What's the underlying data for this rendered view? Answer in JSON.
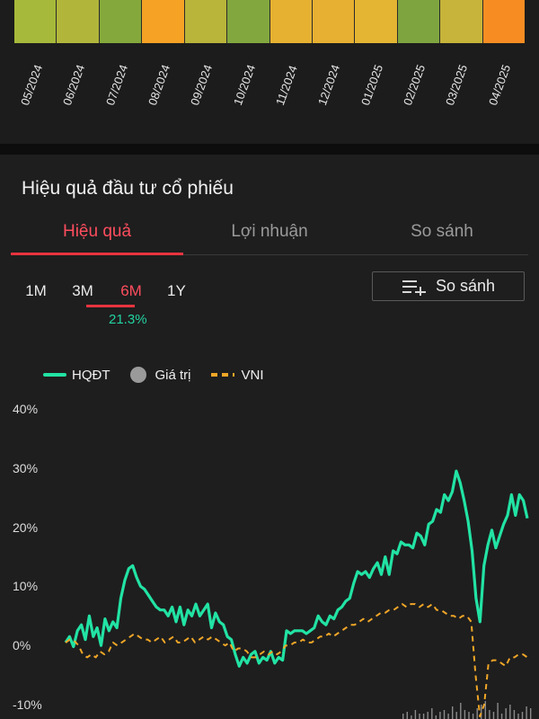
{
  "heatmap": {
    "months": [
      "05/2024",
      "06/2024",
      "07/2024",
      "08/2024",
      "09/2024",
      "10/2024",
      "11/2024",
      "12/2024",
      "01/2025",
      "02/2025",
      "03/2025",
      "04/2025"
    ],
    "colors": [
      "#a7b93a",
      "#b1b63a",
      "#84a83c",
      "#f6a224",
      "#b9b43a",
      "#82a73e",
      "#e6b131",
      "#e7b032",
      "#e4b533",
      "#7ea43f",
      "#c7b43a",
      "#f78d22"
    ]
  },
  "section": {
    "title": "Hiệu quả đầu tư cổ phiếu"
  },
  "tabs": [
    {
      "label": "Hiệu quả",
      "active": true
    },
    {
      "label": "Lợi nhuận",
      "active": false
    },
    {
      "label": "So sánh",
      "active": false
    }
  ],
  "ranges": {
    "items": [
      "1M",
      "3M",
      "6M",
      "1Y"
    ],
    "selected": "6M",
    "selected_return": "21.3%"
  },
  "compare_button": {
    "label": "So sánh",
    "icon": "playlist-add-icon"
  },
  "legend": {
    "hqdt": "HQĐT",
    "gia_tri": "Giá trị",
    "vni": "VNI"
  },
  "colors": {
    "hqdt": "#22e3a4",
    "vni": "#f0a627",
    "active": "#ff4d5e",
    "volume": "#8a8a8a"
  },
  "chart_data": {
    "type": "line",
    "yticks": [
      "40%",
      "30%",
      "20%",
      "10%",
      "0%",
      "-10%"
    ],
    "ylim": [
      -10,
      40
    ],
    "series": [
      {
        "name": "HQĐT",
        "values": [
          0.5,
          1.5,
          -0.2,
          2.5,
          3.5,
          1.0,
          5.0,
          1.5,
          3.0,
          0.0,
          4.5,
          2.5,
          4.0,
          3.0,
          8.0,
          11.0,
          13.0,
          13.5,
          11.5,
          10.0,
          9.5,
          8.5,
          7.5,
          6.5,
          6.0,
          6.0,
          5.0,
          6.5,
          4.0,
          6.5,
          3.5,
          6.0,
          5.0,
          7.0,
          5.0,
          6.0,
          7.0,
          3.0,
          5.5,
          4.0,
          3.5,
          1.5,
          1.0,
          -1.5,
          -3.5,
          -2.0,
          -3.0,
          -1.5,
          -1.0,
          -3.0,
          -2.0,
          -2.5,
          -1.0,
          -3.0,
          -2.0,
          -2.5,
          2.5,
          2.0,
          2.5,
          2.5,
          2.5,
          2.0,
          2.5,
          3.0,
          5.0,
          4.0,
          3.5,
          5.0,
          4.5,
          6.0,
          6.5,
          7.5,
          8.0,
          10.5,
          12.5,
          12.0,
          12.5,
          11.5,
          13.0,
          14.0,
          12.0,
          15.0,
          12.0,
          16.0,
          15.5,
          17.5,
          17.0,
          17.0,
          16.5,
          19.0,
          18.5,
          17.0,
          20.5,
          21.0,
          23.0,
          22.5,
          25.5,
          24.5,
          26.0,
          29.5,
          27.5,
          24.5,
          21.0,
          16.0,
          8.0,
          4.0,
          13.5,
          17.0,
          19.5,
          16.5,
          18.5,
          20.5,
          22.0,
          25.5,
          22.0,
          25.5,
          24.5,
          21.5
        ]
      },
      {
        "name": "VNI",
        "values": [
          0.5,
          1.0,
          0.8,
          0.0,
          -1.5,
          -2.0,
          -1.5,
          -2.0,
          -1.0,
          -1.5,
          -1.0,
          0.5,
          0.0,
          0.5,
          1.0,
          1.5,
          2.0,
          1.5,
          1.0,
          1.0,
          0.5,
          1.0,
          1.5,
          0.5,
          1.0,
          1.5,
          0.5,
          0.5,
          1.0,
          1.5,
          0.5,
          1.0,
          1.5,
          1.0,
          1.5,
          1.0,
          0.5,
          0.0,
          0.5,
          -1.0,
          -0.5,
          -0.5,
          -1.0,
          -2.0,
          -2.0,
          -1.5,
          -1.0,
          -1.5,
          -1.0,
          -1.5,
          -1.0,
          0.0,
          0.0,
          0.5,
          0.5,
          1.0,
          0.5,
          0.5,
          1.0,
          1.5,
          1.5,
          2.0,
          1.5,
          2.0,
          2.5,
          3.0,
          3.5,
          3.5,
          4.0,
          4.5,
          4.0,
          4.5,
          5.0,
          5.5,
          5.5,
          6.0,
          6.0,
          6.5,
          7.0,
          6.5,
          7.0,
          7.0,
          6.5,
          7.0,
          6.5,
          7.0,
          6.0,
          6.0,
          5.5,
          5.0,
          5.0,
          4.5,
          5.0,
          5.0,
          4.0,
          -5.0,
          -12.0,
          -10.0,
          -3.0,
          -2.5,
          -2.5,
          -3.0,
          -3.5,
          -2.0,
          -2.0,
          -1.5,
          -1.5,
          -2.0
        ]
      }
    ],
    "volume": [
      0.3,
      0.4,
      0.2,
      0.5,
      0.3,
      0.3,
      0.4,
      0.6,
      0.2,
      0.4,
      0.5,
      0.3,
      0.7,
      0.4,
      0.9,
      0.5,
      0.4,
      0.3,
      0.6,
      0.8,
      1.0,
      0.5,
      0.4,
      0.9,
      0.3,
      0.6,
      0.8,
      0.5,
      0.3,
      0.4,
      0.7,
      0.6
    ]
  }
}
